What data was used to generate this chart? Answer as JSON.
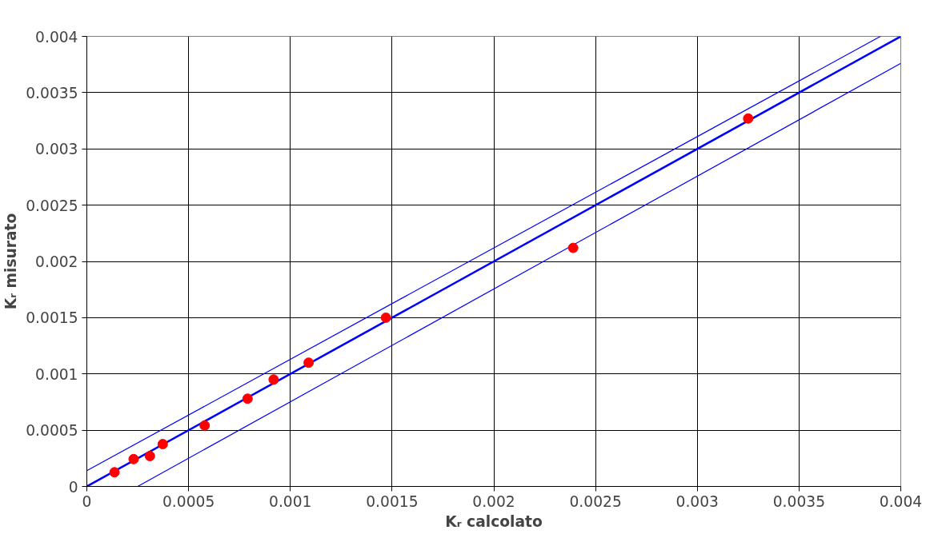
{
  "chart_data": {
    "type": "scatter",
    "xlabel": "Kᵣ calcolato",
    "ylabel": "Kᵣ misurato",
    "xlim": [
      0,
      0.004
    ],
    "ylim": [
      0,
      0.004
    ],
    "xticks": [
      0,
      0.0005,
      0.001,
      0.0015,
      0.002,
      0.0025,
      0.003,
      0.0035,
      0.004
    ],
    "yticks": [
      0,
      0.0005,
      0.001,
      0.0015,
      0.002,
      0.0025,
      0.003,
      0.0035,
      0.004
    ],
    "grid": true,
    "series": [
      {
        "type": "line",
        "color": "#0000ff",
        "x": [
          0,
          0.004
        ],
        "values": [
          0,
          0.004
        ]
      },
      {
        "type": "line",
        "color": "#0000ff",
        "x": [
          0,
          0.0039
        ],
        "values": [
          0.00014,
          0.004
        ]
      },
      {
        "type": "line",
        "color": "#0000ff",
        "x": [
          0.00025,
          0.004
        ],
        "values": [
          0,
          0.00376
        ]
      },
      {
        "marker": "circle",
        "color": "#ff0000",
        "x": [
          0.000136,
          0.00023,
          0.00031,
          0.000373,
          0.000579,
          0.00079,
          0.000918,
          0.00109,
          0.00147,
          0.00239,
          0.00325
        ],
        "values": [
          0.000126,
          0.000243,
          0.00027,
          0.000376,
          0.000541,
          0.00078,
          0.00095,
          0.0011,
          0.0015,
          0.00212,
          0.00327
        ]
      }
    ]
  }
}
